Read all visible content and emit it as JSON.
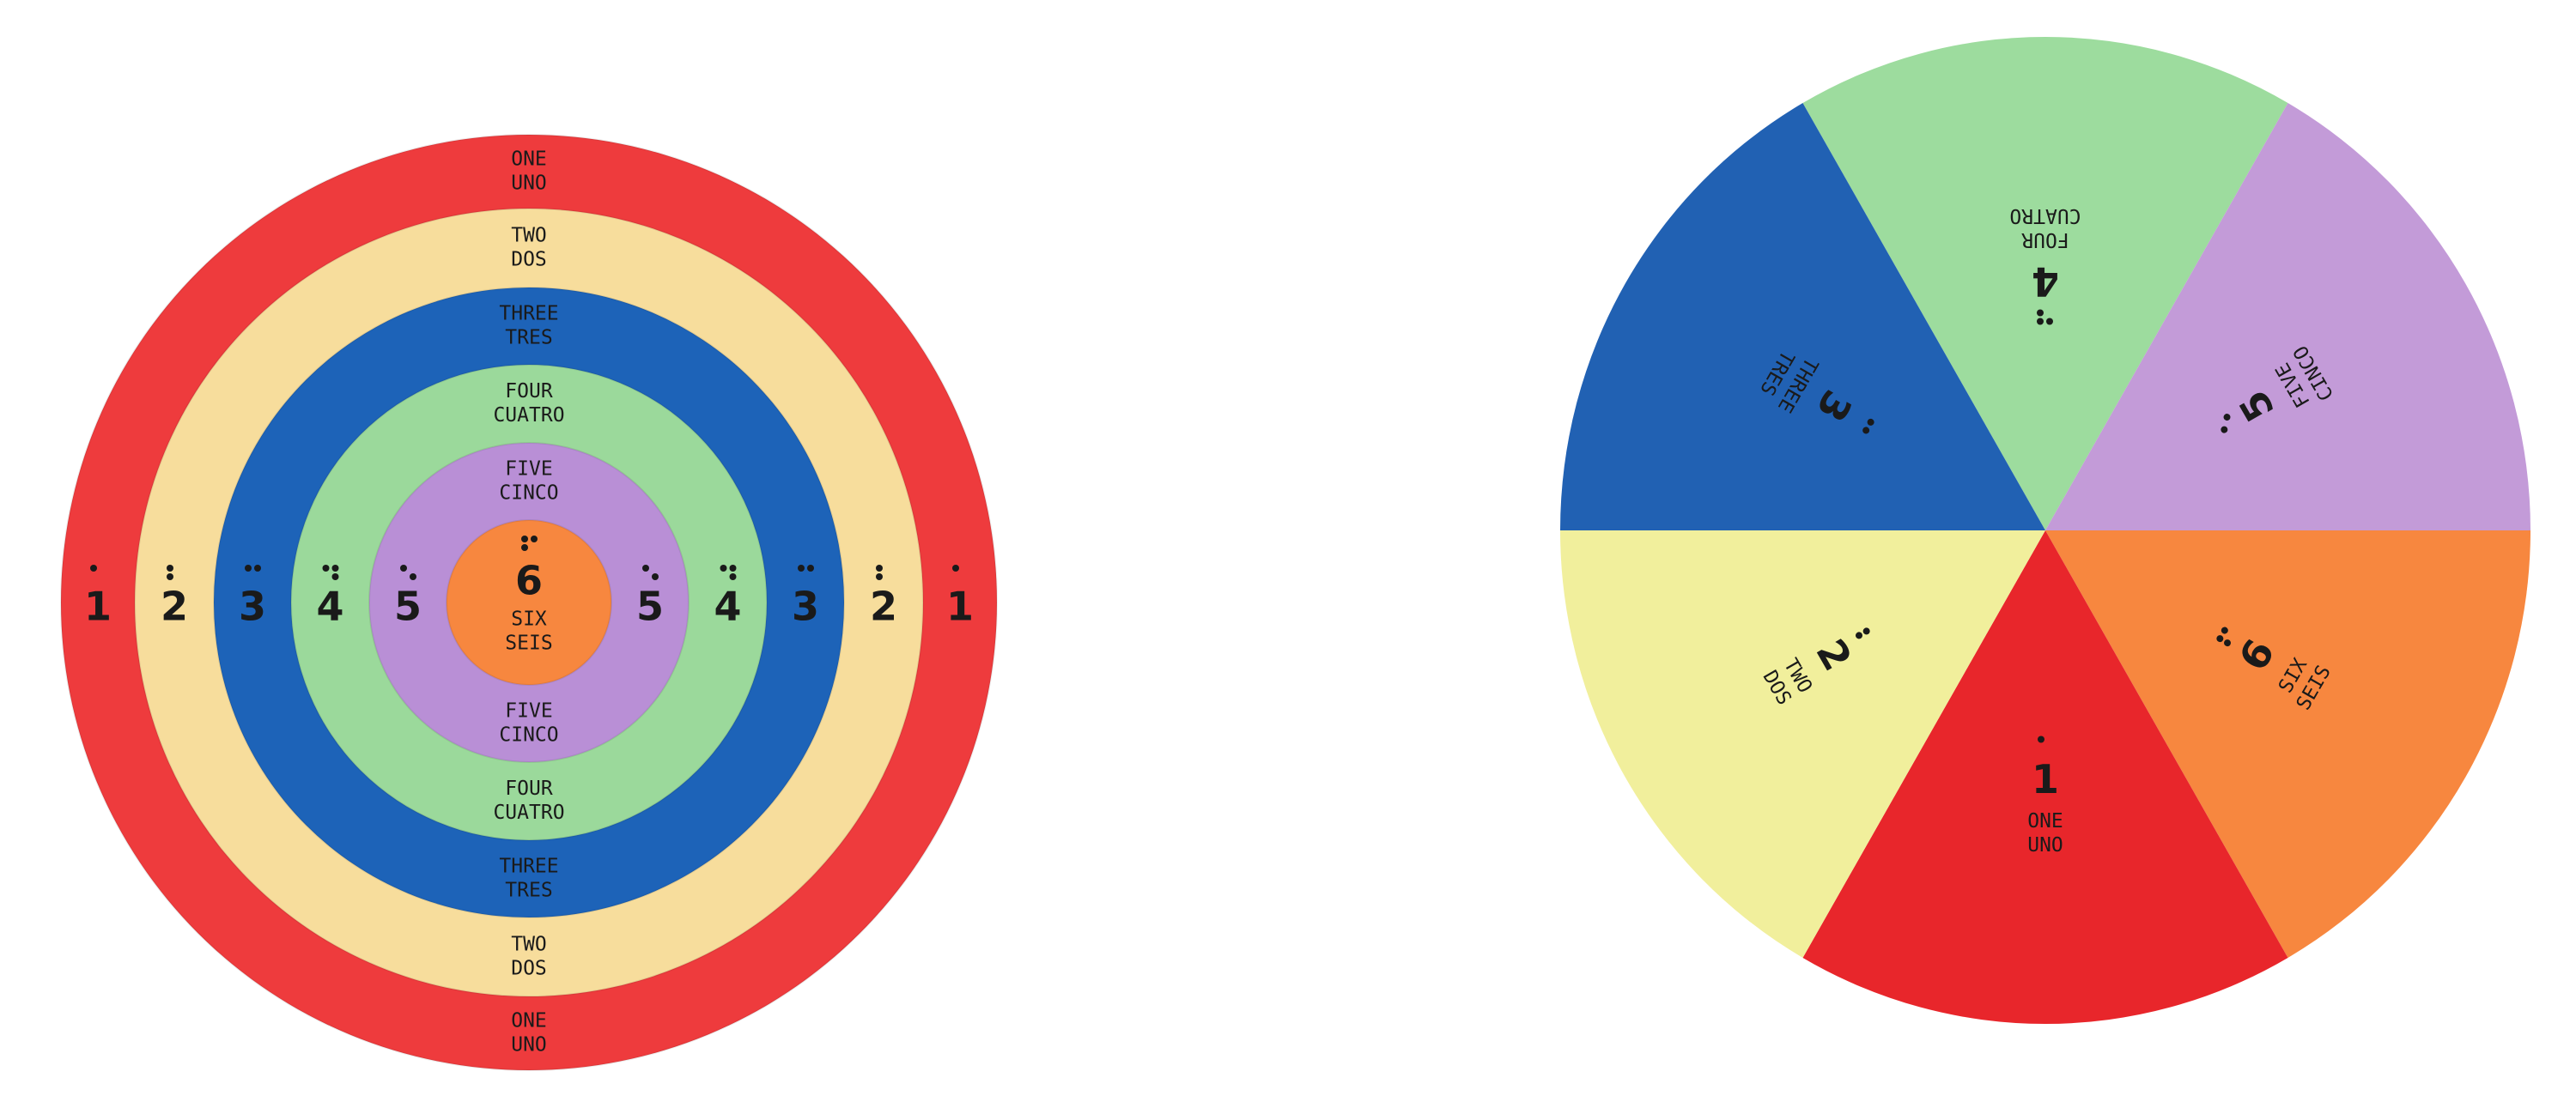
{
  "left_target": {
    "rings": [
      {
        "number": "1",
        "english": "ONE",
        "spanish": "UNO",
        "color": "#ee3b3d"
      },
      {
        "number": "2",
        "english": "TWO",
        "spanish": "DOS",
        "color": "#f7dd9c"
      },
      {
        "number": "3",
        "english": "THREE",
        "spanish": "TRES",
        "color": "#1d63b8"
      },
      {
        "number": "4",
        "english": "FOUR",
        "spanish": "CUATRO",
        "color": "#9bd99b"
      },
      {
        "number": "5",
        "english": "FIVE",
        "spanish": "CINCO",
        "color": "#b98fd6"
      },
      {
        "number": "6",
        "english": "SIX",
        "spanish": "SEIS",
        "color": "#f7873f"
      }
    ]
  },
  "right_target": {
    "sectors": [
      {
        "number": "4",
        "english": "FOUR",
        "spanish": "CUATRO",
        "color": "#9ddc9e"
      },
      {
        "number": "5",
        "english": "FIVE",
        "spanish": "CINCO",
        "color": "#c39bd8"
      },
      {
        "number": "6",
        "english": "SIX",
        "spanish": "SEIS",
        "color": "#f7873f"
      },
      {
        "number": "1",
        "english": "ONE",
        "spanish": "UNO",
        "color": "#e8262b"
      },
      {
        "number": "2",
        "english": "TWO",
        "spanish": "DOS",
        "color": "#f1ef9c"
      },
      {
        "number": "3",
        "english": "THREE",
        "spanish": "TRES",
        "color": "#2161b3"
      }
    ]
  }
}
